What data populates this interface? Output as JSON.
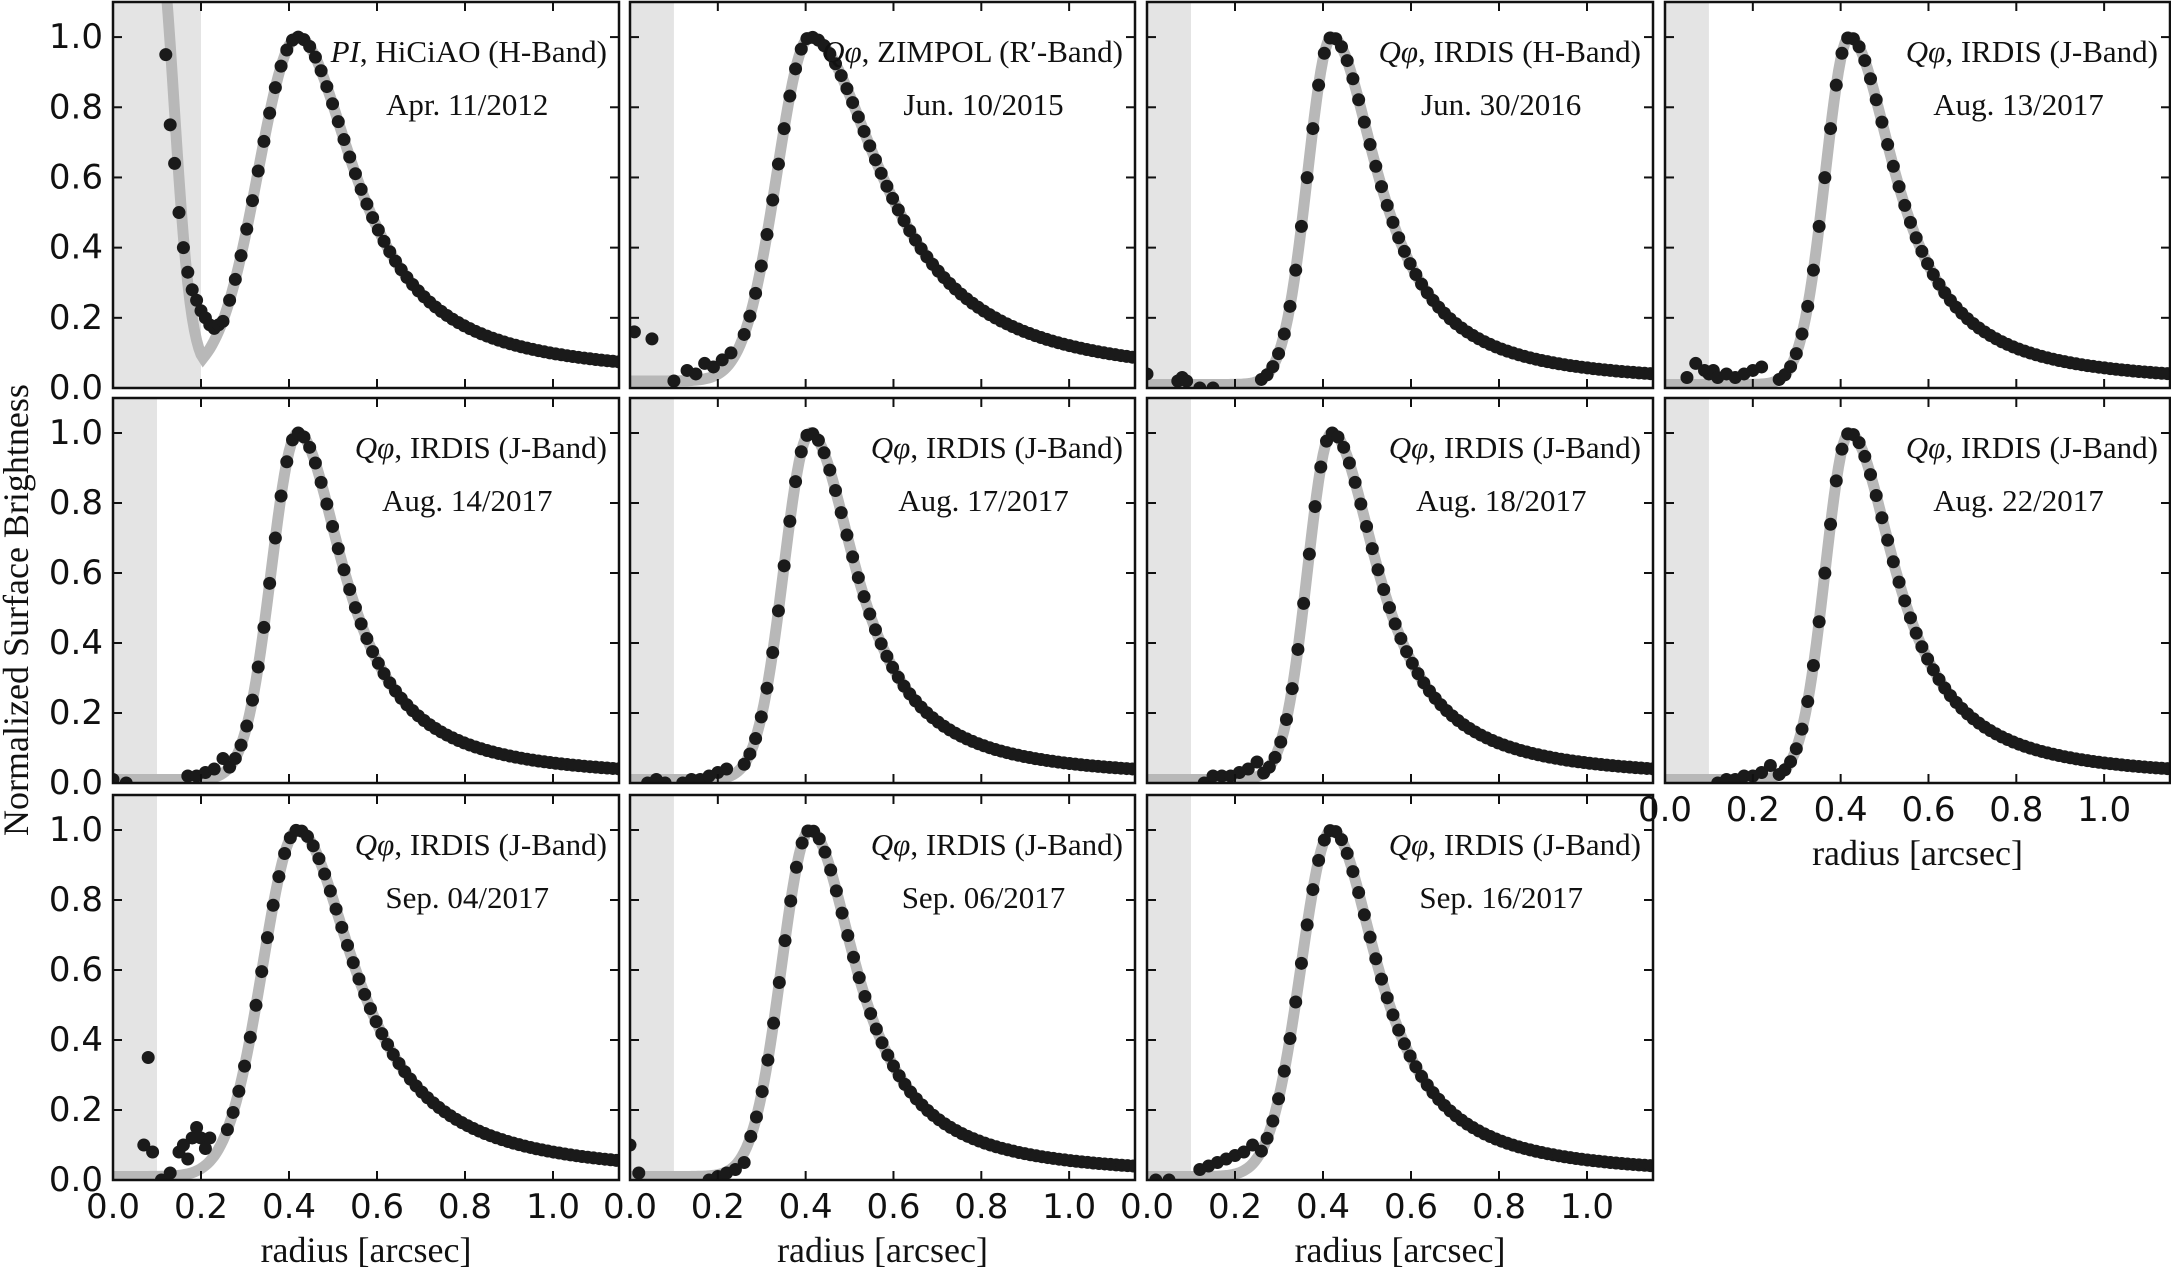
{
  "figure": {
    "ylabel": "Normalized Surface Brightness",
    "xlabel": "radius [arcsec]",
    "x_ticks": [
      "0.0",
      "0.2",
      "0.4",
      "0.6",
      "0.8",
      "1.0"
    ],
    "y_ticks": [
      "0.0",
      "0.2",
      "0.4",
      "0.6",
      "0.8",
      "1.0"
    ]
  },
  "colors": {
    "points": "#1a1a1a",
    "band": "#b8b8b8",
    "shade": "#e4e4e4",
    "frame": "#111111"
  },
  "chart_data": [
    {
      "type": "scatter",
      "title_math": "PI",
      "title_rest": ", HiCiAO (H-Band)",
      "date": "Apr. 11/2012",
      "xlim": [
        0,
        1.15
      ],
      "ylim": [
        0,
        1.1
      ],
      "masked_region": [
        0,
        0.2
      ],
      "peak_x": 0.42,
      "peak_y": 1.0,
      "width_in": 0.09,
      "width_out": 0.16,
      "floor": 0.03,
      "x": [
        0.12,
        0.13,
        0.14,
        0.15,
        0.16,
        0.17,
        0.18,
        0.19,
        0.2,
        0.21,
        0.22,
        0.23,
        0.24,
        0.25
      ],
      "y": [
        0.95,
        0.75,
        0.64,
        0.5,
        0.4,
        0.33,
        0.28,
        0.25,
        0.22,
        0.2,
        0.18,
        0.17,
        0.18,
        0.19
      ]
    },
    {
      "type": "scatter",
      "title_math": "Qφ",
      "title_rest": ", ZIMPOL (R′-Band)",
      "date": "Jun. 10/2015",
      "xlim": [
        0,
        1.15
      ],
      "ylim": [
        0,
        1.1
      ],
      "masked_region": [
        0,
        0.1
      ],
      "peak_x": 0.41,
      "peak_y": 1.0,
      "width_in": 0.075,
      "width_out": 0.2,
      "floor": 0.02,
      "x": [
        0.01,
        0.05,
        0.1,
        0.13,
        0.15,
        0.17,
        0.19,
        0.21,
        0.23
      ],
      "y": [
        0.16,
        0.14,
        0.02,
        0.05,
        0.04,
        0.07,
        0.06,
        0.08,
        0.1
      ]
    },
    {
      "type": "scatter",
      "title_math": "Qφ",
      "title_rest": ", IRDIS (H-Band)",
      "date": "Jun. 30/2016",
      "xlim": [
        0,
        1.15
      ],
      "ylim": [
        0,
        1.1
      ],
      "masked_region": [
        0,
        0.1
      ],
      "peak_x": 0.42,
      "peak_y": 1.0,
      "width_in": 0.055,
      "width_out": 0.13,
      "floor": 0.01,
      "x": [
        0.0,
        0.07,
        0.08,
        0.09,
        0.12,
        0.15
      ],
      "y": [
        0.04,
        0.02,
        0.03,
        0.02,
        0.0,
        0.0
      ]
    },
    {
      "type": "scatter",
      "title_math": "Qφ",
      "title_rest": ", IRDIS (J-Band)",
      "date": "Aug. 13/2017",
      "xlim": [
        0,
        1.15
      ],
      "ylim": [
        0,
        1.1
      ],
      "masked_region": [
        0,
        0.1
      ],
      "peak_x": 0.42,
      "peak_y": 1.0,
      "width_in": 0.055,
      "width_out": 0.13,
      "floor": 0.01,
      "x": [
        0.05,
        0.07,
        0.09,
        0.1,
        0.11,
        0.12,
        0.14,
        0.16,
        0.18,
        0.2,
        0.22
      ],
      "y": [
        0.03,
        0.07,
        0.05,
        0.04,
        0.05,
        0.03,
        0.04,
        0.03,
        0.04,
        0.05,
        0.06
      ]
    },
    {
      "type": "scatter",
      "title_math": "Qφ",
      "title_rest": ", IRDIS (J-Band)",
      "date": "Aug. 14/2017",
      "xlim": [
        0,
        1.15
      ],
      "ylim": [
        0,
        1.1
      ],
      "masked_region": [
        0,
        0.1
      ],
      "peak_x": 0.42,
      "peak_y": 1.0,
      "width_in": 0.06,
      "width_out": 0.13,
      "floor": 0.01,
      "x": [
        0.0,
        0.03,
        0.17,
        0.19,
        0.21,
        0.23,
        0.25
      ],
      "y": [
        0.01,
        0.0,
        0.02,
        0.02,
        0.03,
        0.04,
        0.07
      ]
    },
    {
      "type": "scatter",
      "title_math": "Qφ",
      "title_rest": ", IRDIS (J-Band)",
      "date": "Aug. 17/2017",
      "xlim": [
        0,
        1.15
      ],
      "ylim": [
        0,
        1.1
      ],
      "masked_region": [
        0,
        0.1
      ],
      "peak_x": 0.41,
      "peak_y": 1.0,
      "width_in": 0.06,
      "width_out": 0.13,
      "floor": 0.01,
      "x": [
        0.04,
        0.06,
        0.08,
        0.12,
        0.14,
        0.16,
        0.18,
        0.2,
        0.22
      ],
      "y": [
        0.0,
        0.01,
        0.0,
        0.0,
        0.01,
        0.01,
        0.02,
        0.03,
        0.04
      ]
    },
    {
      "type": "scatter",
      "title_math": "Qφ",
      "title_rest": ", IRDIS (J-Band)",
      "date": "Aug. 18/2017",
      "xlim": [
        0,
        1.15
      ],
      "ylim": [
        0,
        1.1
      ],
      "masked_region": [
        0,
        0.1
      ],
      "peak_x": 0.42,
      "peak_y": 1.0,
      "width_in": 0.055,
      "width_out": 0.13,
      "floor": 0.01,
      "x": [
        0.13,
        0.15,
        0.17,
        0.19,
        0.21,
        0.23,
        0.25
      ],
      "y": [
        0.0,
        0.02,
        0.02,
        0.02,
        0.03,
        0.04,
        0.06
      ]
    },
    {
      "type": "scatter",
      "title_math": "Qφ",
      "title_rest": ", IRDIS (J-Band)",
      "date": "Aug. 22/2017",
      "xlim": [
        0,
        1.15
      ],
      "ylim": [
        0,
        1.1
      ],
      "masked_region": [
        0,
        0.1
      ],
      "peak_x": 0.42,
      "peak_y": 1.0,
      "width_in": 0.055,
      "width_out": 0.13,
      "floor": 0.01,
      "x": [
        0.12,
        0.14,
        0.16,
        0.18,
        0.2,
        0.22,
        0.24
      ],
      "y": [
        0.0,
        0.01,
        0.01,
        0.02,
        0.02,
        0.03,
        0.05
      ]
    },
    {
      "type": "scatter",
      "title_math": "Qφ",
      "title_rest": ", IRDIS (J-Band)",
      "date": "Sep. 04/2017",
      "xlim": [
        0,
        1.15
      ],
      "ylim": [
        0,
        1.1
      ],
      "masked_region": [
        0,
        0.1
      ],
      "peak_x": 0.42,
      "peak_y": 1.0,
      "width_in": 0.08,
      "width_out": 0.16,
      "floor": 0.01,
      "x": [
        0.07,
        0.08,
        0.09,
        0.11,
        0.13,
        0.15,
        0.16,
        0.17,
        0.18,
        0.19,
        0.2,
        0.21,
        0.22
      ],
      "y": [
        0.1,
        0.35,
        0.08,
        0.0,
        0.02,
        0.08,
        0.1,
        0.06,
        0.12,
        0.15,
        0.12,
        0.09,
        0.12
      ]
    },
    {
      "type": "scatter",
      "title_math": "Qφ",
      "title_rest": ", IRDIS (J-Band)",
      "date": "Sep. 06/2017",
      "xlim": [
        0,
        1.15
      ],
      "ylim": [
        0,
        1.1
      ],
      "masked_region": [
        0,
        0.1
      ],
      "peak_x": 0.41,
      "peak_y": 1.0,
      "width_in": 0.065,
      "width_out": 0.13,
      "floor": 0.01,
      "x": [
        0.0,
        0.02,
        0.18,
        0.2,
        0.22,
        0.24,
        0.26
      ],
      "y": [
        0.1,
        0.02,
        0.0,
        0.01,
        0.02,
        0.03,
        0.05
      ]
    },
    {
      "type": "scatter",
      "title_math": "Qφ",
      "title_rest": ", IRDIS (J-Band)",
      "date": "Sep. 16/2017",
      "xlim": [
        0,
        1.15
      ],
      "ylim": [
        0,
        1.1
      ],
      "masked_region": [
        0,
        0.1
      ],
      "peak_x": 0.42,
      "peak_y": 1.0,
      "width_in": 0.07,
      "width_out": 0.13,
      "floor": 0.01,
      "x": [
        0.02,
        0.05,
        0.12,
        0.14,
        0.16,
        0.18,
        0.2,
        0.22,
        0.24
      ],
      "y": [
        0.0,
        0.0,
        0.03,
        0.04,
        0.05,
        0.06,
        0.07,
        0.08,
        0.1
      ]
    }
  ]
}
